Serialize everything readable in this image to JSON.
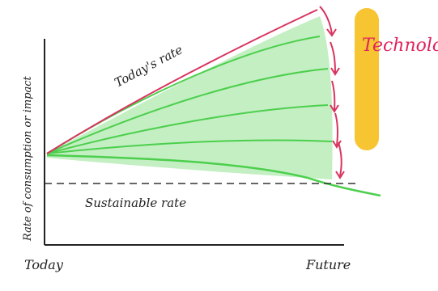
{
  "labels": {
    "y_axis": "Rate of consumption or impact",
    "x_start": "Today",
    "x_end": "Future",
    "todays_rate": "Today's rate",
    "sustainable_rate": "Sustainable rate",
    "technology": "Technology"
  },
  "colors": {
    "axis": "#222222",
    "todays_rate_line": "#d8345f",
    "green_fill": "#b8ecb8",
    "green_line": "#4ccf4c",
    "sustainable_line": "#333333",
    "arrow": "#d8345f",
    "technology_bar": "#f7c531",
    "technology_text": "#e0245e"
  }
}
